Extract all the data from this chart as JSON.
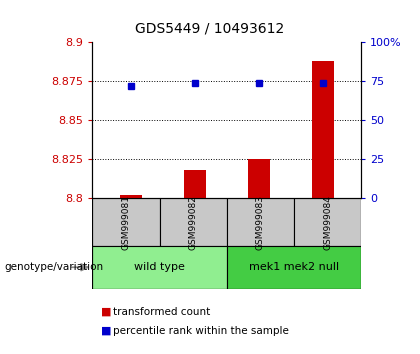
{
  "title": "GDS5449 / 10493612",
  "samples": [
    "GSM999081",
    "GSM999082",
    "GSM999083",
    "GSM999084"
  ],
  "bar_values": [
    8.802,
    8.818,
    8.825,
    8.888
  ],
  "bar_base": 8.8,
  "percentile_values": [
    72,
    74,
    74,
    74
  ],
  "ylim_left": [
    8.8,
    8.9
  ],
  "ylim_right": [
    0,
    100
  ],
  "yticks_left": [
    8.8,
    8.825,
    8.85,
    8.875,
    8.9
  ],
  "ytick_labels_left": [
    "8.8",
    "8.825",
    "8.85",
    "8.875",
    "8.9"
  ],
  "yticks_right": [
    0,
    25,
    50,
    75,
    100
  ],
  "ytick_labels_right": [
    "0",
    "25",
    "50",
    "75",
    "100%"
  ],
  "bar_color": "#cc0000",
  "dot_color": "#0000cc",
  "groups": [
    {
      "label": "wild type",
      "samples": [
        0,
        1
      ],
      "color": "#90ee90"
    },
    {
      "label": "mek1 mek2 null",
      "samples": [
        2,
        3
      ],
      "color": "#44cc44"
    }
  ],
  "legend_bar_label": "transformed count",
  "legend_dot_label": "percentile rank within the sample",
  "xlabel_left": "genotype/variation",
  "background_plot": "#ffffff",
  "background_sample": "#c8c8c8",
  "tick_color_left": "#cc0000",
  "tick_color_right": "#0000cc",
  "bar_width": 0.35,
  "dot_size": 5
}
